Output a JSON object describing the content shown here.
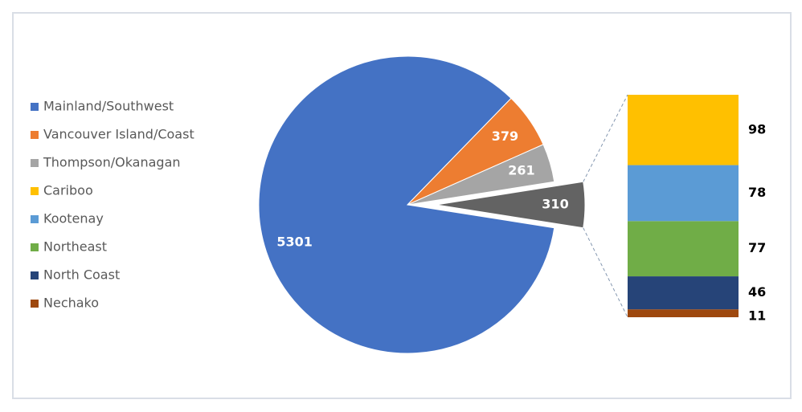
{
  "chart_data": {
    "type": "pie-of-bar",
    "pie": {
      "categories": [
        "Mainland/Southwest",
        "Vancouver Island/Coast",
        "Thompson/Okanagan",
        null
      ],
      "values": [
        5301,
        379,
        261,
        310
      ],
      "colors": [
        "#4472c4",
        "#ed7d31",
        "#a5a5a5",
        "#636363"
      ]
    },
    "bar": {
      "categories": [
        "Cariboo",
        "Kootenay",
        "Northeast",
        "North Coast",
        "Nechako"
      ],
      "values": [
        98,
        78,
        77,
        46,
        11
      ],
      "colors": [
        "#ffc000",
        "#5b9bd5",
        "#70ad47",
        "#264478",
        "#9e480e"
      ]
    },
    "legend_position": "left"
  }
}
